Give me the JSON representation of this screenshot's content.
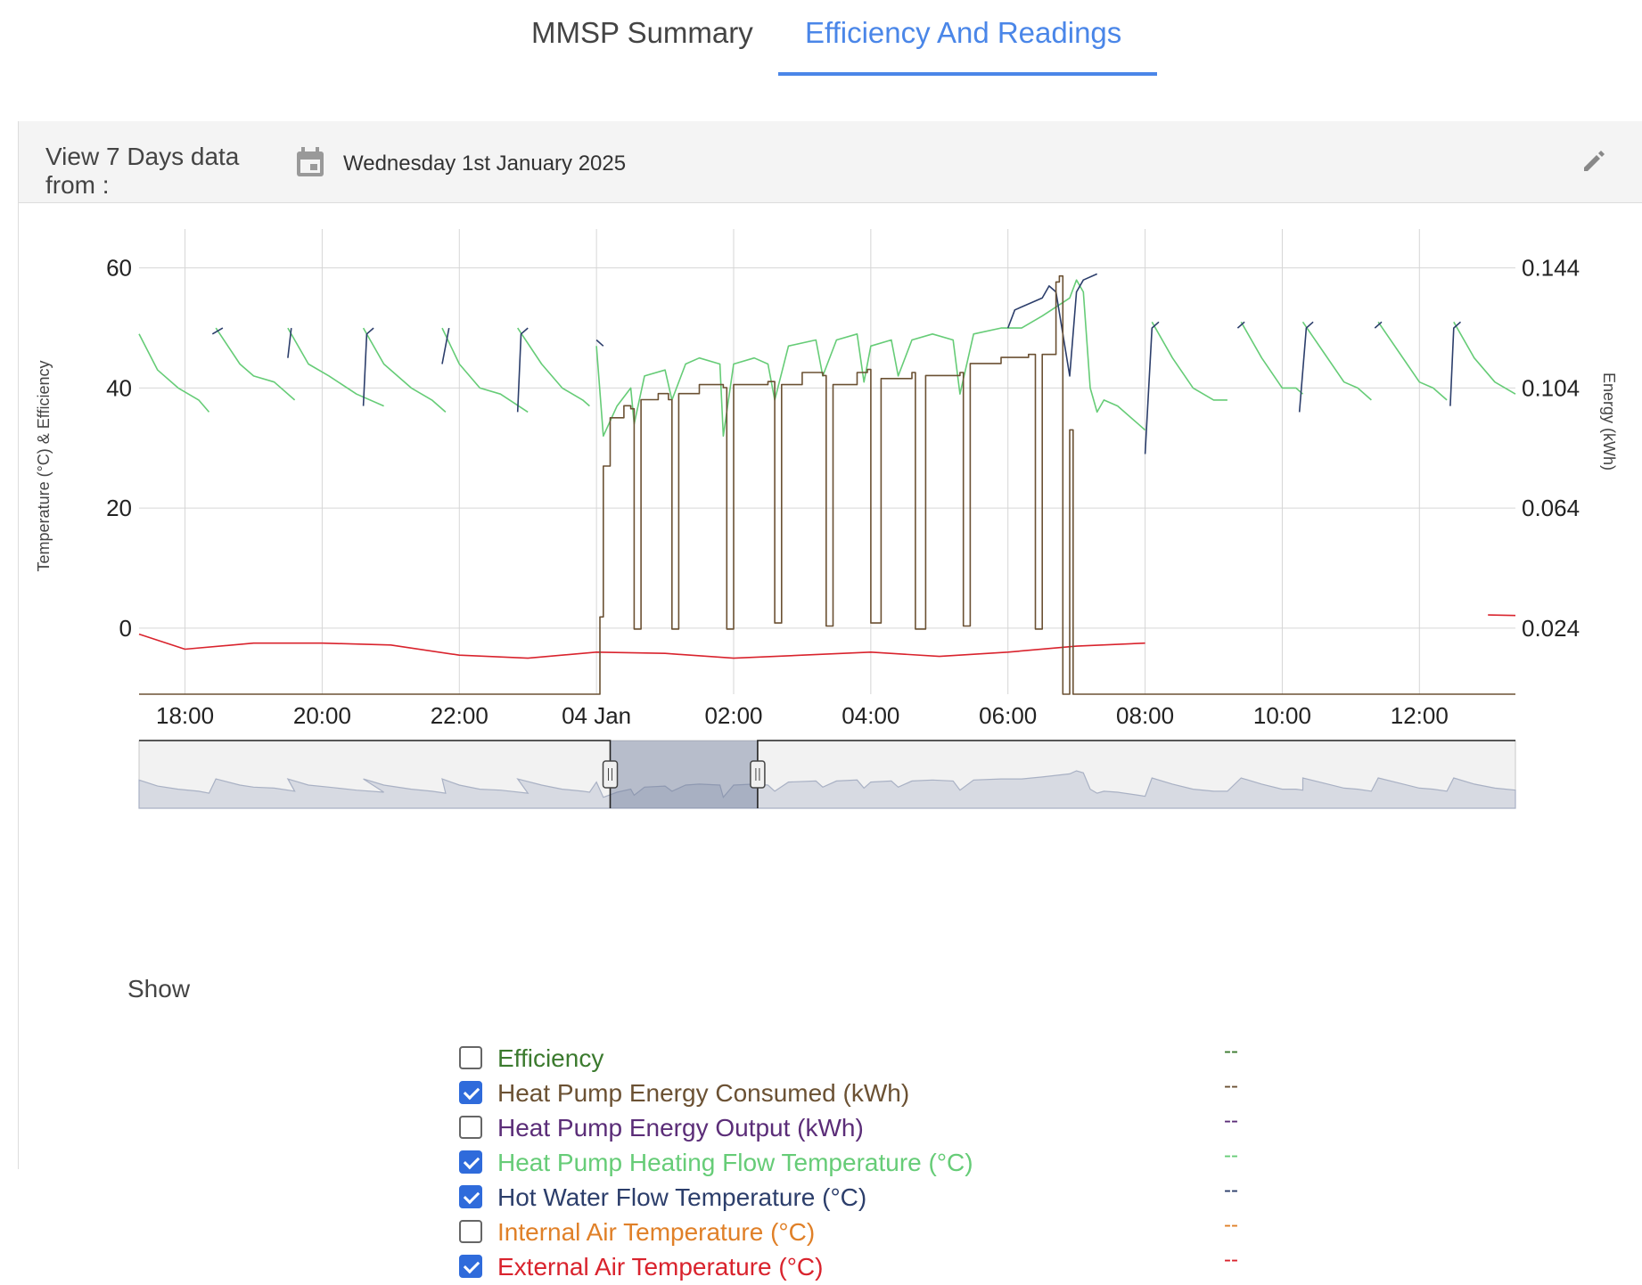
{
  "tabs": [
    {
      "label": "MMSP Summary"
    },
    {
      "label": "Efficiency And Readings"
    }
  ],
  "header": {
    "view_label": "View 7 Days data from :",
    "date": "Wednesday 1st January 2025",
    "icons": {
      "calendar": "calendar-icon",
      "edit": "pencil-edit-icon"
    }
  },
  "chart_data": {
    "type": "line",
    "title": "",
    "ylabel_left": "Temperature (°C) & Efficiency",
    "ylabel_right": "Energy (kWh)",
    "ylim_left": [
      -11,
      65
    ],
    "ylim_right": [
      0.0024,
      0.1536
    ],
    "left_ticks": [
      60,
      40,
      20,
      0
    ],
    "right_ticks": [
      "0.144",
      "0.104",
      "0.064",
      "0.024"
    ],
    "x_ticks": [
      {
        "h": 18,
        "label": "18:00"
      },
      {
        "h": 20,
        "label": "20:00"
      },
      {
        "h": 22,
        "label": "22:00"
      },
      {
        "h": 24,
        "label": "04 Jan"
      },
      {
        "h": 26,
        "label": "02:00"
      },
      {
        "h": 28,
        "label": "04:00"
      },
      {
        "h": 30,
        "label": "06:00"
      },
      {
        "h": 32,
        "label": "08:00"
      },
      {
        "h": 34,
        "label": "10:00"
      },
      {
        "h": 36,
        "label": "12:00"
      }
    ],
    "xlim_hours": [
      17.33,
      37.4
    ],
    "grid": true,
    "series": [
      {
        "name": "Heat Pump Heating Flow Temperature (°C)",
        "axis": "left",
        "color": "#66cc77",
        "points": [
          [
            17.33,
            49
          ],
          [
            17.6,
            43
          ],
          [
            17.9,
            40
          ],
          [
            18.2,
            38
          ],
          [
            18.35,
            36
          ],
          null,
          [
            18.45,
            50
          ],
          [
            18.8,
            44
          ],
          [
            19.0,
            42
          ],
          [
            19.3,
            41
          ],
          [
            19.6,
            38
          ],
          null,
          [
            19.5,
            50
          ],
          [
            19.8,
            44
          ],
          [
            20.1,
            42
          ],
          [
            20.5,
            39
          ],
          [
            20.9,
            37
          ],
          null,
          [
            20.6,
            50
          ],
          [
            20.9,
            44
          ],
          [
            21.3,
            40
          ],
          [
            21.6,
            38
          ],
          [
            21.8,
            36
          ],
          null,
          [
            21.75,
            50
          ],
          [
            22.0,
            44
          ],
          [
            22.3,
            40
          ],
          [
            22.6,
            39
          ],
          [
            23.0,
            36
          ],
          null,
          [
            22.85,
            50
          ],
          [
            23.2,
            44
          ],
          [
            23.5,
            40
          ],
          [
            23.8,
            38
          ],
          [
            23.9,
            37
          ],
          null,
          [
            24.0,
            47
          ],
          [
            24.1,
            32
          ],
          [
            24.3,
            37
          ],
          [
            24.5,
            40
          ],
          [
            24.55,
            34
          ],
          [
            24.7,
            42
          ],
          [
            25.0,
            43
          ],
          [
            25.1,
            38
          ],
          [
            25.3,
            44
          ],
          [
            25.5,
            45
          ],
          [
            25.8,
            44
          ],
          [
            25.85,
            32
          ],
          [
            26.0,
            44
          ],
          [
            26.3,
            45
          ],
          [
            26.5,
            44
          ],
          [
            26.6,
            38
          ],
          [
            26.8,
            47
          ],
          [
            27.2,
            48
          ],
          [
            27.3,
            42
          ],
          [
            27.5,
            48
          ],
          [
            27.8,
            49
          ],
          [
            27.9,
            41
          ],
          [
            28.0,
            47
          ],
          [
            28.3,
            48
          ],
          [
            28.4,
            42
          ],
          [
            28.6,
            48
          ],
          [
            28.9,
            49
          ],
          [
            29.2,
            48
          ],
          [
            29.3,
            39
          ],
          [
            29.5,
            49
          ],
          [
            29.9,
            50
          ],
          [
            30.2,
            50
          ],
          [
            30.5,
            52
          ],
          [
            30.9,
            55
          ],
          [
            31.0,
            58
          ],
          [
            31.1,
            56
          ],
          [
            31.2,
            40
          ],
          [
            31.3,
            36
          ],
          [
            31.4,
            38
          ],
          [
            31.6,
            37
          ],
          [
            31.9,
            34
          ],
          [
            32.0,
            33
          ],
          null,
          [
            32.1,
            51
          ],
          [
            32.4,
            45
          ],
          [
            32.7,
            40
          ],
          [
            33.0,
            38
          ],
          [
            33.2,
            38
          ],
          null,
          [
            33.4,
            51
          ],
          [
            33.7,
            45
          ],
          [
            34.0,
            40
          ],
          [
            34.2,
            40
          ],
          [
            34.3,
            39
          ],
          null,
          [
            34.3,
            51
          ],
          [
            34.6,
            46
          ],
          [
            34.9,
            41
          ],
          [
            35.1,
            40
          ],
          [
            35.3,
            38
          ],
          null,
          [
            35.4,
            51
          ],
          [
            35.7,
            46
          ],
          [
            36.0,
            41
          ],
          [
            36.2,
            40
          ],
          [
            36.4,
            38
          ],
          null,
          [
            36.5,
            51
          ],
          [
            36.8,
            45
          ],
          [
            37.1,
            41
          ],
          [
            37.4,
            39
          ]
        ]
      },
      {
        "name": "Hot Water Flow Temperature (°C)",
        "axis": "left",
        "color": "#2c3e6b",
        "points": [
          [
            18.4,
            49
          ],
          [
            18.55,
            50
          ],
          null,
          [
            19.5,
            45
          ],
          [
            19.55,
            50
          ],
          null,
          [
            20.6,
            37
          ],
          [
            20.65,
            49
          ],
          [
            20.75,
            50
          ],
          null,
          [
            21.75,
            44
          ],
          [
            21.85,
            50
          ],
          null,
          [
            22.85,
            36
          ],
          [
            22.9,
            49
          ],
          [
            23.0,
            50
          ],
          null,
          [
            24.0,
            48
          ],
          [
            24.1,
            47
          ],
          null,
          [
            30.0,
            50
          ],
          [
            30.1,
            53
          ],
          [
            30.5,
            55
          ],
          [
            30.6,
            57
          ],
          [
            30.7,
            56
          ],
          [
            30.9,
            42
          ],
          [
            31.0,
            56
          ],
          [
            31.1,
            58
          ],
          [
            31.3,
            59
          ],
          null,
          [
            32.0,
            29
          ],
          [
            32.1,
            50
          ],
          [
            32.2,
            51
          ],
          null,
          [
            33.35,
            50
          ],
          [
            33.45,
            51
          ],
          null,
          [
            34.25,
            36
          ],
          [
            34.35,
            50
          ],
          [
            34.45,
            51
          ],
          null,
          [
            35.35,
            50
          ],
          [
            35.45,
            51
          ],
          null,
          [
            36.45,
            37
          ],
          [
            36.5,
            50
          ],
          [
            36.6,
            51
          ]
        ]
      },
      {
        "name": "External Air Temperature (°C)",
        "axis": "left",
        "color": "#d9232d",
        "points": [
          [
            17.33,
            -1
          ],
          [
            18.0,
            -3.5
          ],
          [
            19.0,
            -2.5
          ],
          [
            20.0,
            -2.5
          ],
          [
            21.0,
            -2.8
          ],
          [
            22.0,
            -4.5
          ],
          [
            23.0,
            -5
          ],
          [
            24.0,
            -4
          ],
          [
            25.0,
            -4.2
          ],
          [
            26.0,
            -5
          ],
          [
            27.0,
            -4.5
          ],
          [
            28.0,
            -4
          ],
          [
            29.0,
            -4.7
          ],
          [
            30.0,
            -4
          ],
          [
            31.0,
            -3
          ],
          [
            32.0,
            -2.5
          ],
          null,
          [
            37.0,
            2.2
          ],
          [
            37.4,
            2.1
          ]
        ]
      },
      {
        "name": "Heat Pump Energy Consumed (kWh)",
        "axis": "right",
        "color": "#6b5133",
        "points": [
          [
            17.33,
            0.0024
          ],
          [
            24.0,
            0.0024
          ],
          [
            24.05,
            0.028
          ],
          [
            24.1,
            0.078
          ],
          [
            24.2,
            0.094
          ],
          [
            24.4,
            0.098
          ],
          [
            24.5,
            0.097
          ],
          [
            24.55,
            0.024
          ],
          [
            24.65,
            0.1
          ],
          [
            24.9,
            0.102
          ],
          [
            25.05,
            0.1
          ],
          [
            25.1,
            0.024
          ],
          [
            25.2,
            0.102
          ],
          [
            25.5,
            0.105
          ],
          [
            25.85,
            0.104
          ],
          [
            25.9,
            0.024
          ],
          [
            26.0,
            0.105
          ],
          [
            26.5,
            0.106
          ],
          [
            26.6,
            0.026
          ],
          [
            26.7,
            0.105
          ],
          [
            27.0,
            0.109
          ],
          [
            27.3,
            0.108
          ],
          [
            27.35,
            0.025
          ],
          [
            27.45,
            0.105
          ],
          [
            27.8,
            0.109
          ],
          [
            27.95,
            0.11
          ],
          [
            28.0,
            0.026
          ],
          [
            28.15,
            0.107
          ],
          [
            28.6,
            0.109
          ],
          [
            28.65,
            0.024
          ],
          [
            28.8,
            0.108
          ],
          [
            29.3,
            0.109
          ],
          [
            29.35,
            0.025
          ],
          [
            29.45,
            0.112
          ],
          [
            29.9,
            0.114
          ],
          [
            30.3,
            0.115
          ],
          [
            30.4,
            0.024
          ],
          [
            30.5,
            0.115
          ],
          [
            30.7,
            0.139
          ],
          [
            30.75,
            0.141
          ],
          [
            30.8,
            0.0024
          ],
          [
            30.9,
            0.09
          ],
          [
            30.95,
            0.0024
          ],
          [
            31.0,
            0.0024
          ],
          [
            32.0,
            0.0024
          ],
          [
            37.4,
            0.0024
          ]
        ]
      }
    ]
  },
  "navigator": {
    "series_color": "#a9b1c4",
    "selection_hours": [
      24.2,
      26.35
    ]
  },
  "show": {
    "title": "Show",
    "items": [
      {
        "label": "Efficiency",
        "checked": false,
        "color": "#3b7a2e",
        "value": "--"
      },
      {
        "label": "Heat Pump Energy Consumed (kWh)",
        "checked": true,
        "color": "#6b5133",
        "value": "--"
      },
      {
        "label": "Heat Pump Energy Output (kWh)",
        "checked": false,
        "color": "#5b2d78",
        "value": "--"
      },
      {
        "label": "Heat Pump Heating Flow Temperature (°C)",
        "checked": true,
        "color": "#66cc77",
        "value": "--"
      },
      {
        "label": "Hot Water Flow Temperature (°C)",
        "checked": true,
        "color": "#2c3e6b",
        "value": "--"
      },
      {
        "label": "Internal Air Temperature (°C)",
        "checked": false,
        "color": "#e08028",
        "value": "--"
      },
      {
        "label": "External Air Temperature (°C)",
        "checked": true,
        "color": "#d9232d",
        "value": "--"
      }
    ]
  }
}
